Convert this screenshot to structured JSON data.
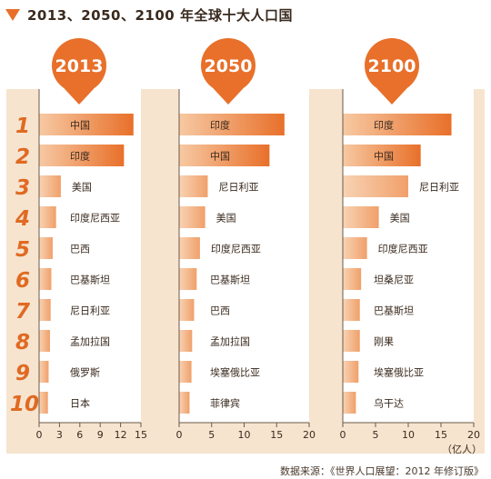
{
  "title": "2013、2050、2100 年全球十大人口国",
  "source": "数据来源：《世界人口展望：2012 年修订版》",
  "unit_label": "（亿人）",
  "colors": {
    "accent": "#e8702a",
    "panel": "#f6e4cf",
    "bar_light": "#f5b98a",
    "bar_dark": "#e8702a",
    "rank_text": "#e06a22"
  },
  "chart_data": {
    "type": "bar",
    "orientation": "horizontal",
    "title": "2013、2050、2100 年全球十大人口国",
    "unit": "（亿人）",
    "ranks": [
      "1",
      "2",
      "3",
      "4",
      "5",
      "6",
      "7",
      "8",
      "9",
      "10"
    ],
    "panels": [
      {
        "year": "2013",
        "xlim": [
          0,
          15
        ],
        "ticks": [
          "0",
          "3",
          "6",
          "9",
          "12",
          "15"
        ],
        "tick_values": [
          0,
          3,
          6,
          9,
          12,
          15
        ],
        "categories": [
          "中国",
          "印度",
          "美国",
          "印度尼西亚",
          "巴西",
          "巴基斯坦",
          "尼日利亚",
          "孟加拉国",
          "俄罗斯",
          "日本"
        ],
        "values": [
          13.9,
          12.5,
          3.2,
          2.5,
          2.0,
          1.8,
          1.7,
          1.6,
          1.4,
          1.3
        ]
      },
      {
        "year": "2050",
        "xlim": [
          0,
          20
        ],
        "ticks": [
          "0",
          "5",
          "10",
          "15",
          "20"
        ],
        "tick_values": [
          0,
          5,
          10,
          15,
          20
        ],
        "categories": [
          "印度",
          "中国",
          "尼日利亚",
          "美国",
          "印度尼西亚",
          "巴基斯坦",
          "巴西",
          "孟加拉国",
          "埃塞俄比亚",
          "菲律宾"
        ],
        "values": [
          16.2,
          13.9,
          4.4,
          4.0,
          3.2,
          2.7,
          2.3,
          2.0,
          1.9,
          1.6
        ]
      },
      {
        "year": "2100",
        "xlim": [
          0,
          20
        ],
        "ticks": [
          "0",
          "5",
          "10",
          "15",
          "20"
        ],
        "tick_values": [
          0,
          5,
          10,
          15,
          20
        ],
        "categories": [
          "印度",
          "中国",
          "尼日利亚",
          "美国",
          "印度尼西亚",
          "坦桑尼亚",
          "巴基斯坦",
          "刚果",
          "埃塞俄比亚",
          "乌干达"
        ],
        "values": [
          16.6,
          11.9,
          10.0,
          5.5,
          3.7,
          2.8,
          2.6,
          2.6,
          2.4,
          2.0
        ]
      }
    ]
  }
}
